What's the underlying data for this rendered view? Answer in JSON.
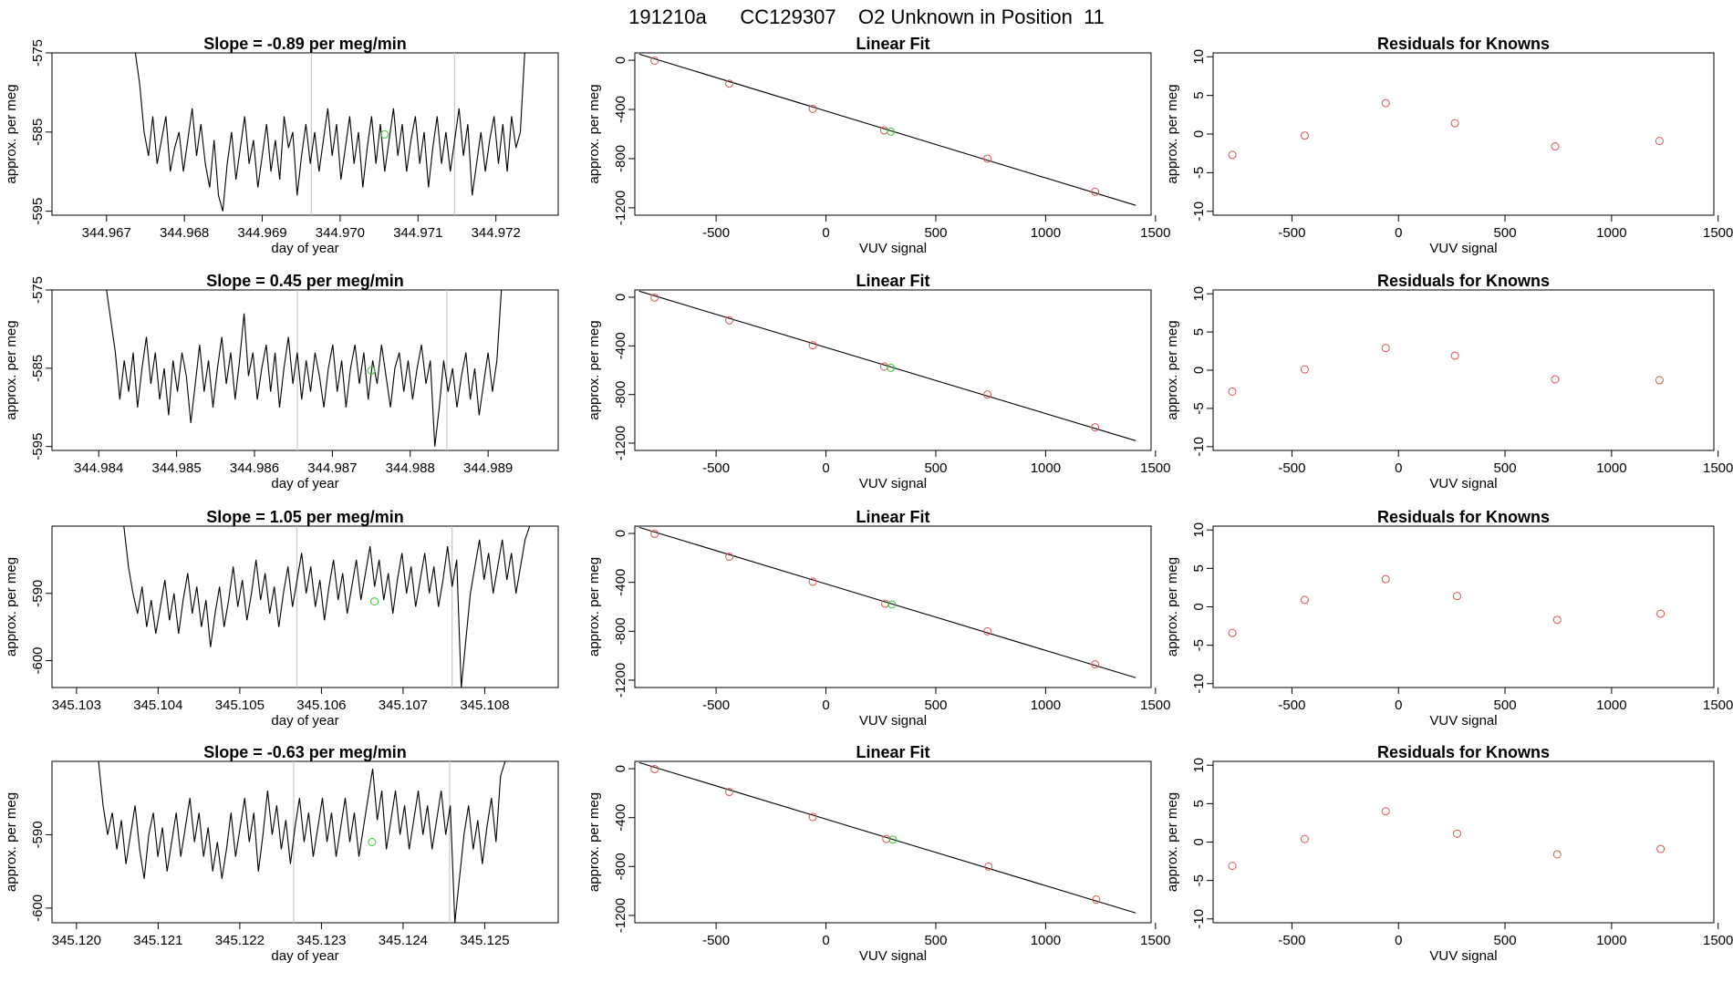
{
  "page_title": "191210a      CC129307    O2 Unknown in Position  11",
  "colors": {
    "trace": "#000000",
    "fit_line": "#000000",
    "known_point": "#d9534f",
    "unknown_point": "#33cc33",
    "vline": "#c8c8c8",
    "frame": "#000000"
  },
  "chart_data": [
    {
      "type": "line",
      "panel": "trace",
      "row": 1,
      "title": "Slope =  -0.89  per meg/min",
      "xlabel": "day of year",
      "ylabel": "approx. per meg",
      "xlim": [
        344.9663,
        344.9728
      ],
      "ylim": [
        -595.5,
        -575
      ],
      "xticks": [
        344.967,
        344.968,
        344.969,
        344.97,
        344.971,
        344.972
      ],
      "xtick_labels": [
        "344.967",
        "344.968",
        "344.969",
        "344.970",
        "344.971",
        "344.972"
      ],
      "yticks": [
        -595,
        -585,
        -575
      ],
      "ytick_labels": [
        "-595",
        "-585",
        "-575"
      ],
      "vlines": [
        344.96963,
        344.97147
      ],
      "unknown_marker": [
        344.97057,
        -585.3
      ],
      "series_x_range": [
        344.96737,
        344.97237
      ],
      "values": [
        -575,
        -579,
        -585,
        -588,
        -583,
        -589,
        -586,
        -583,
        -590,
        -587,
        -585,
        -590,
        -586,
        -582,
        -588,
        -584,
        -589,
        -592,
        -586,
        -593,
        -595,
        -589,
        -585,
        -591,
        -587,
        -583,
        -589,
        -586,
        -592,
        -588,
        -584,
        -590,
        -586,
        -591,
        -583,
        -587,
        -585,
        -593,
        -588,
        -584,
        -589,
        -585,
        -590,
        -586,
        -582,
        -588,
        -584,
        -591,
        -587,
        -583,
        -589,
        -585,
        -592,
        -587,
        -583,
        -589,
        -584,
        -590,
        -586,
        -582,
        -588,
        -584,
        -590,
        -586,
        -583,
        -589,
        -585,
        -592,
        -587,
        -583,
        -589,
        -585,
        -590,
        -586,
        -582,
        -588,
        -584,
        -593,
        -589,
        -585,
        -590,
        -586,
        -583,
        -589,
        -584,
        -590,
        -583,
        -587,
        -585,
        -575
      ]
    },
    {
      "type": "scatter",
      "panel": "fit",
      "row": 1,
      "title": "Linear Fit",
      "xlabel": "VUV signal",
      "ylabel": "approx. per meg",
      "xlim": [
        -870,
        1480
      ],
      "ylim": [
        -1260,
        60
      ],
      "xticks": [
        -500,
        0,
        500,
        1000,
        1500
      ],
      "xtick_labels": [
        "-500",
        "0",
        "500",
        "1000",
        "1500"
      ],
      "yticks": [
        0,
        -400,
        -800,
        -1200
      ],
      "ytick_labels": [
        "0",
        "-400",
        "-800",
        "-1200"
      ],
      "fit_line": {
        "x": [
          -850,
          1410
        ],
        "y": [
          50,
          -1180
        ]
      },
      "knowns": [
        [
          -780,
          -3
        ],
        [
          -440,
          -190
        ],
        [
          -60,
          -395
        ],
        [
          265,
          -570
        ],
        [
          735,
          -800
        ],
        [
          1225,
          -1070
        ]
      ],
      "unknown": [
        295,
        -580
      ]
    },
    {
      "type": "scatter",
      "panel": "residuals",
      "row": 1,
      "title": "Residuals for Knowns",
      "xlabel": "VUV signal",
      "ylabel": "approx. per meg",
      "xlim": [
        -870,
        1480
      ],
      "ylim": [
        -10.5,
        10.5
      ],
      "xticks": [
        -500,
        0,
        500,
        1000,
        1500
      ],
      "xtick_labels": [
        "-500",
        "0",
        "500",
        "1000",
        "1500"
      ],
      "yticks": [
        10,
        5,
        0,
        -5,
        -10
      ],
      "ytick_labels": [
        "10",
        "5",
        "0",
        "-5",
        "-10"
      ],
      "knowns": [
        [
          -780,
          -2.7
        ],
        [
          -440,
          -0.2
        ],
        [
          -60,
          4.0
        ],
        [
          265,
          1.4
        ],
        [
          735,
          -1.6
        ],
        [
          1225,
          -0.9
        ]
      ]
    },
    {
      "type": "line",
      "panel": "trace",
      "row": 2,
      "title": "Slope =  0.45  per meg/min",
      "xlabel": "day of year",
      "ylabel": "approx. per meg",
      "xlim": [
        344.9834,
        344.9899
      ],
      "ylim": [
        -595.5,
        -575
      ],
      "xticks": [
        344.984,
        344.985,
        344.986,
        344.987,
        344.988,
        344.989
      ],
      "xtick_labels": [
        "344.984",
        "344.985",
        "344.986",
        "344.987",
        "344.988",
        "344.989"
      ],
      "yticks": [
        -595,
        -585,
        -575
      ],
      "ytick_labels": [
        "-595",
        "-585",
        "-575"
      ],
      "vlines": [
        344.98655,
        344.98847
      ],
      "unknown_marker": [
        344.9875,
        -585.3
      ],
      "series_x_range": [
        344.9841,
        344.98917
      ],
      "values": [
        -575,
        -579,
        -583,
        -589,
        -584,
        -588,
        -583,
        -590,
        -585,
        -581,
        -587,
        -583,
        -589,
        -585,
        -591,
        -584,
        -588,
        -583,
        -586,
        -592,
        -587,
        -582,
        -588,
        -584,
        -590,
        -585,
        -581,
        -587,
        -583,
        -589,
        -584,
        -578,
        -586,
        -583,
        -589,
        -585,
        -582,
        -588,
        -583,
        -590,
        -585,
        -581,
        -587,
        -583,
        -589,
        -584,
        -588,
        -583,
        -586,
        -590,
        -585,
        -582,
        -588,
        -584,
        -590,
        -585,
        -582,
        -587,
        -583,
        -589,
        -584,
        -587,
        -582,
        -586,
        -590,
        -585,
        -583,
        -588,
        -584,
        -589,
        -585,
        -582,
        -587,
        -584,
        -595,
        -590,
        -584,
        -588,
        -585,
        -590,
        -586,
        -583,
        -589,
        -585,
        -591,
        -587,
        -583,
        -588,
        -584,
        -575
      ]
    },
    {
      "type": "scatter",
      "panel": "fit",
      "row": 2,
      "title": "Linear Fit",
      "xlabel": "VUV signal",
      "ylabel": "approx. per meg",
      "xlim": [
        -870,
        1480
      ],
      "ylim": [
        -1260,
        60
      ],
      "xticks": [
        -500,
        0,
        500,
        1000,
        1500
      ],
      "xtick_labels": [
        "-500",
        "0",
        "500",
        "1000",
        "1500"
      ],
      "yticks": [
        0,
        -400,
        -800,
        -1200
      ],
      "ytick_labels": [
        "0",
        "-400",
        "-800",
        "-1200"
      ],
      "fit_line": {
        "x": [
          -850,
          1410
        ],
        "y": [
          50,
          -1180
        ]
      },
      "knowns": [
        [
          -780,
          -3
        ],
        [
          -440,
          -190
        ],
        [
          -60,
          -395
        ],
        [
          265,
          -570
        ],
        [
          735,
          -800
        ],
        [
          1225,
          -1070
        ]
      ],
      "unknown": [
        295,
        -580
      ]
    },
    {
      "type": "scatter",
      "panel": "residuals",
      "row": 2,
      "title": "Residuals for Knowns",
      "xlabel": "VUV signal",
      "ylabel": "approx. per meg",
      "xlim": [
        -870,
        1480
      ],
      "ylim": [
        -10.5,
        10.5
      ],
      "xticks": [
        -500,
        0,
        500,
        1000,
        1500
      ],
      "xtick_labels": [
        "-500",
        "0",
        "500",
        "1000",
        "1500"
      ],
      "yticks": [
        10,
        5,
        0,
        -5,
        -10
      ],
      "ytick_labels": [
        "10",
        "5",
        "0",
        "-5",
        "-10"
      ],
      "knowns": [
        [
          -780,
          -2.8
        ],
        [
          -440,
          0.1
        ],
        [
          -60,
          2.9
        ],
        [
          265,
          1.9
        ],
        [
          735,
          -1.2
        ],
        [
          1225,
          -1.3
        ]
      ]
    },
    {
      "type": "line",
      "panel": "trace",
      "row": 3,
      "title": "Slope =  1.05  per meg/min",
      "xlabel": "day of year",
      "ylabel": "approx. per meg",
      "xlim": [
        345.1027,
        345.1089
      ],
      "ylim": [
        -604,
        -580
      ],
      "xticks": [
        345.103,
        345.104,
        345.105,
        345.106,
        345.107,
        345.108
      ],
      "xtick_labels": [
        "345.103",
        "345.104",
        "345.105",
        "345.106",
        "345.107",
        "345.108"
      ],
      "yticks": [
        -600,
        -590
      ],
      "ytick_labels": [
        "-600",
        "-590"
      ],
      "vlines": [
        345.1057,
        345.1076
      ],
      "unknown_marker": [
        345.10665,
        -591.2
      ],
      "series_x_range": [
        345.10358,
        345.10855
      ],
      "values": [
        -580,
        -586,
        -590,
        -593,
        -589,
        -595,
        -591,
        -596,
        -592,
        -588,
        -594,
        -590,
        -596,
        -591,
        -587,
        -593,
        -589,
        -595,
        -591,
        -598,
        -593,
        -589,
        -595,
        -591,
        -586,
        -592,
        -588,
        -594,
        -590,
        -585,
        -591,
        -587,
        -593,
        -589,
        -595,
        -590,
        -586,
        -592,
        -588,
        -584,
        -590,
        -586,
        -592,
        -588,
        -594,
        -589,
        -585,
        -591,
        -587,
        -593,
        -589,
        -585,
        -591,
        -587,
        -583,
        -589,
        -585,
        -591,
        -587,
        -593,
        -588,
        -584,
        -590,
        -586,
        -592,
        -588,
        -584,
        -590,
        -586,
        -592,
        -588,
        -583,
        -589,
        -585,
        -604,
        -597,
        -590,
        -586,
        -582,
        -588,
        -584,
        -590,
        -586,
        -582,
        -588,
        -584,
        -590,
        -586,
        -582,
        -580
      ]
    },
    {
      "type": "scatter",
      "panel": "fit",
      "row": 3,
      "title": "Linear Fit",
      "xlabel": "VUV signal",
      "ylabel": "approx. per meg",
      "xlim": [
        -870,
        1480
      ],
      "ylim": [
        -1260,
        60
      ],
      "xticks": [
        -500,
        0,
        500,
        1000,
        1500
      ],
      "xtick_labels": [
        "-500",
        "0",
        "500",
        "1000",
        "1500"
      ],
      "yticks": [
        0,
        -400,
        -800,
        -1200
      ],
      "ytick_labels": [
        "0",
        "-400",
        "-800",
        "-1200"
      ],
      "fit_line": {
        "x": [
          -850,
          1410
        ],
        "y": [
          50,
          -1180
        ]
      },
      "knowns": [
        [
          -780,
          -3
        ],
        [
          -440,
          -190
        ],
        [
          -60,
          -395
        ],
        [
          270,
          -575
        ],
        [
          735,
          -800
        ],
        [
          1225,
          -1070
        ]
      ],
      "unknown": [
        300,
        -580
      ]
    },
    {
      "type": "scatter",
      "panel": "residuals",
      "row": 3,
      "title": "Residuals for Knowns",
      "xlabel": "VUV signal",
      "ylabel": "approx. per meg",
      "xlim": [
        -870,
        1480
      ],
      "ylim": [
        -10.5,
        10.5
      ],
      "xticks": [
        -500,
        0,
        500,
        1000,
        1500
      ],
      "xtick_labels": [
        "-500",
        "0",
        "500",
        "1000",
        "1500"
      ],
      "yticks": [
        10,
        5,
        0,
        -5,
        -10
      ],
      "ytick_labels": [
        "10",
        "5",
        "0",
        "-5",
        "-10"
      ],
      "knowns": [
        [
          -780,
          -3.4
        ],
        [
          -440,
          0.9
        ],
        [
          -60,
          3.6
        ],
        [
          275,
          1.4
        ],
        [
          745,
          -1.7
        ],
        [
          1230,
          -0.9
        ]
      ]
    },
    {
      "type": "line",
      "panel": "trace",
      "row": 4,
      "title": "Slope =  -0.63  per meg/min",
      "xlabel": "day of year",
      "ylabel": "approx. per meg",
      "xlim": [
        345.1197,
        345.1259
      ],
      "ylim": [
        -602,
        -580
      ],
      "xticks": [
        345.12,
        345.121,
        345.122,
        345.123,
        345.124,
        345.125
      ],
      "xtick_labels": [
        "345.120",
        "345.121",
        "345.122",
        "345.123",
        "345.124",
        "345.125"
      ],
      "yticks": [
        -600,
        -590
      ],
      "ytick_labels": [
        "-600",
        "-590"
      ],
      "vlines": [
        345.12266,
        345.12457
      ],
      "unknown_marker": [
        345.12362,
        -591.0
      ],
      "series_x_range": [
        345.12027,
        345.12525
      ],
      "values": [
        -580,
        -586,
        -590,
        -587,
        -592,
        -588,
        -594,
        -590,
        -586,
        -592,
        -596,
        -590,
        -587,
        -593,
        -589,
        -595,
        -591,
        -587,
        -593,
        -589,
        -585,
        -591,
        -587,
        -593,
        -589,
        -595,
        -591,
        -596,
        -592,
        -587,
        -593,
        -589,
        -585,
        -591,
        -587,
        -595,
        -590,
        -584,
        -590,
        -586,
        -592,
        -588,
        -594,
        -589,
        -585,
        -591,
        -587,
        -593,
        -589,
        -585,
        -591,
        -587,
        -593,
        -589,
        -585,
        -591,
        -587,
        -593,
        -589,
        -585,
        -581,
        -588,
        -584,
        -592,
        -588,
        -584,
        -590,
        -586,
        -592,
        -588,
        -584,
        -590,
        -586,
        -592,
        -588,
        -584,
        -590,
        -586,
        -602,
        -596,
        -590,
        -586,
        -592,
        -588,
        -594,
        -589,
        -585,
        -591,
        -582,
        -580
      ]
    },
    {
      "type": "scatter",
      "panel": "fit",
      "row": 4,
      "title": "Linear Fit",
      "xlabel": "VUV signal",
      "ylabel": "approx. per meg",
      "xlim": [
        -870,
        1480
      ],
      "ylim": [
        -1260,
        60
      ],
      "xticks": [
        -500,
        0,
        500,
        1000,
        1500
      ],
      "xtick_labels": [
        "-500",
        "0",
        "500",
        "1000",
        "1500"
      ],
      "yticks": [
        0,
        -400,
        -800,
        -1200
      ],
      "ytick_labels": [
        "0",
        "-400",
        "-800",
        "-1200"
      ],
      "fit_line": {
        "x": [
          -850,
          1410
        ],
        "y": [
          50,
          -1180
        ]
      },
      "knowns": [
        [
          -780,
          -3
        ],
        [
          -440,
          -190
        ],
        [
          -60,
          -395
        ],
        [
          275,
          -575
        ],
        [
          740,
          -800
        ],
        [
          1230,
          -1070
        ]
      ],
      "unknown": [
        305,
        -580
      ]
    },
    {
      "type": "scatter",
      "panel": "residuals",
      "row": 4,
      "title": "Residuals for Knowns",
      "xlabel": "VUV signal",
      "ylabel": "approx. per meg",
      "xlim": [
        -870,
        1480
      ],
      "ylim": [
        -10.5,
        10.5
      ],
      "xticks": [
        -500,
        0,
        500,
        1000,
        1500
      ],
      "xtick_labels": [
        "-500",
        "0",
        "500",
        "1000",
        "1500"
      ],
      "yticks": [
        10,
        5,
        0,
        -5,
        -10
      ],
      "ytick_labels": [
        "10",
        "5",
        "0",
        "-5",
        "-10"
      ],
      "knowns": [
        [
          -780,
          -3.1
        ],
        [
          -440,
          0.4
        ],
        [
          -60,
          4.0
        ],
        [
          275,
          1.1
        ],
        [
          745,
          -1.6
        ],
        [
          1230,
          -0.9
        ]
      ]
    }
  ]
}
